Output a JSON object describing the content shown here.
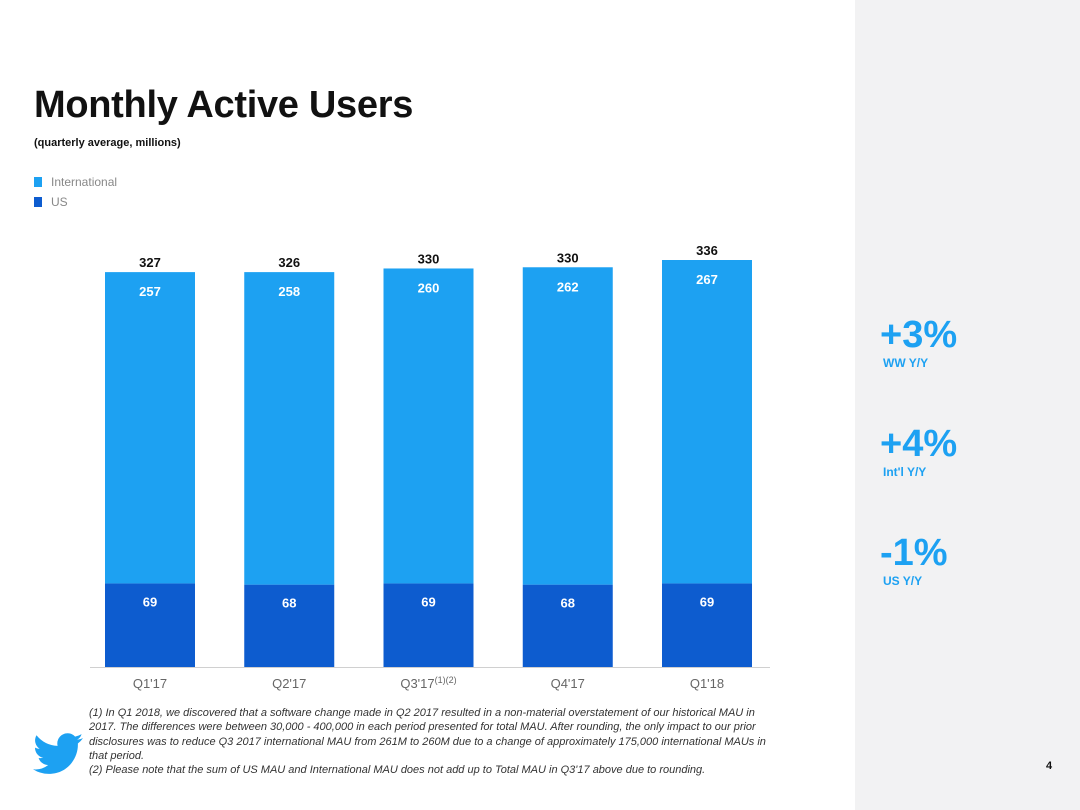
{
  "slide": {
    "title": "Monthly Active Users",
    "subtitle": "(quarterly average, millions)",
    "page_number": "4",
    "logo_icon": "twitter-bird-icon"
  },
  "legend": [
    {
      "label": "International",
      "color": "#1da1f2"
    },
    {
      "label": "US",
      "color": "#0d5ccf"
    }
  ],
  "chart_data": {
    "type": "bar",
    "stacked": true,
    "categories": [
      "Q1'17",
      "Q2'17",
      "Q3'17",
      "Q4'17",
      "Q1'18"
    ],
    "category_superscripts": [
      "",
      "",
      "(1)(2)",
      "",
      ""
    ],
    "series": [
      {
        "name": "US",
        "values": [
          69,
          68,
          69,
          68,
          69
        ],
        "color": "#0d5ccf"
      },
      {
        "name": "International",
        "values": [
          257,
          258,
          260,
          262,
          267
        ],
        "color": "#1da1f2"
      }
    ],
    "totals": [
      327,
      326,
      330,
      330,
      336
    ],
    "ylim": [
      0,
      336
    ],
    "grid": false,
    "legend_position": "top-left"
  },
  "stats": [
    {
      "value": "+3%",
      "label": "WW Y/Y"
    },
    {
      "value": "+4%",
      "label": "Int'l Y/Y"
    },
    {
      "value": "-1%",
      "label": "US Y/Y"
    }
  ],
  "footnotes": [
    "(1) In Q1 2018, we discovered that a software change made in Q2 2017 resulted in a non-material overstatement of our historical MAU in 2017. The differences were between 30,000 - 400,000 in each period presented for total MAU.  After rounding, the only impact to our prior disclosures was to reduce Q3 2017 international MAU from 261M to 260M due to a change of approximately 175,000 international MAUs in that period.",
    "(2) Please note that the sum of US MAU and International MAU does not add up to Total MAU in Q3'17 above due to rounding."
  ]
}
